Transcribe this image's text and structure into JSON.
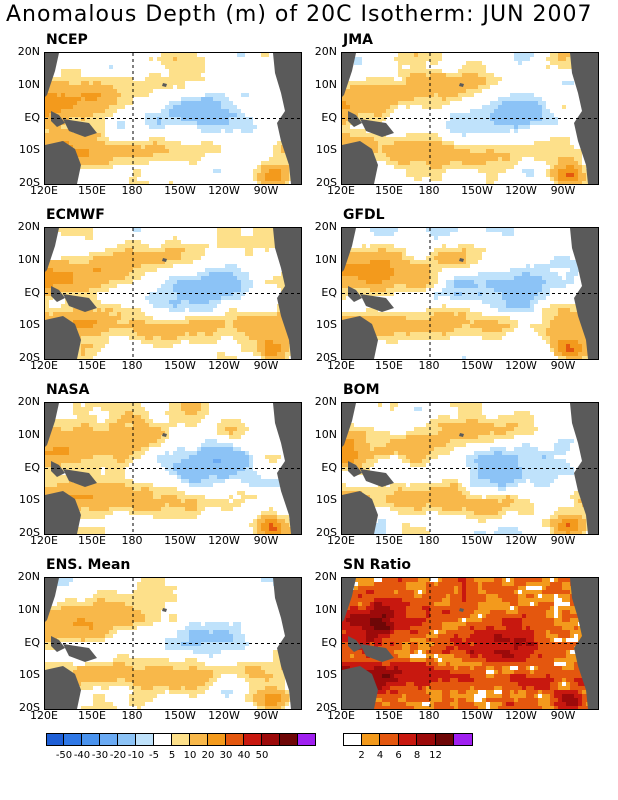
{
  "title": "Anomalous Depth (m) of 20C Isotherm: JUN 2007",
  "lat_labels": [
    "20N",
    "10N",
    "EQ",
    "10S",
    "20S"
  ],
  "lon_labels": [
    "120E",
    "150E",
    "180",
    "150W",
    "120W",
    "90W"
  ],
  "panels": [
    {
      "name": "NCEP"
    },
    {
      "name": "JMA"
    },
    {
      "name": "ECMWF"
    },
    {
      "name": "GFDL"
    },
    {
      "name": "NASA"
    },
    {
      "name": "BOM"
    },
    {
      "name": "ENS. Mean"
    },
    {
      "name": "SN Ratio"
    }
  ],
  "colorbar_anomaly": {
    "labels": [
      "-50",
      "-40",
      "-30",
      "-20",
      "-10",
      "-5",
      "5",
      "10",
      "20",
      "30",
      "40",
      "50"
    ],
    "colors": [
      "#1e5fd6",
      "#2f78e6",
      "#4a93ee",
      "#6aaaf3",
      "#8cc3f6",
      "#bfe2fb",
      "#ffffff",
      "#fde08a",
      "#f8b84a",
      "#f39a1c",
      "#e4570e",
      "#c8180f",
      "#9c0a0a",
      "#6e0707",
      "#a020f0"
    ]
  },
  "colorbar_snratio": {
    "labels": [
      "2",
      "4",
      "6",
      "8",
      "12"
    ],
    "colors": [
      "#ffffff",
      "#f39a1c",
      "#e4570e",
      "#c8180f",
      "#9c0a0a",
      "#6e0707",
      "#a020f0"
    ]
  }
}
